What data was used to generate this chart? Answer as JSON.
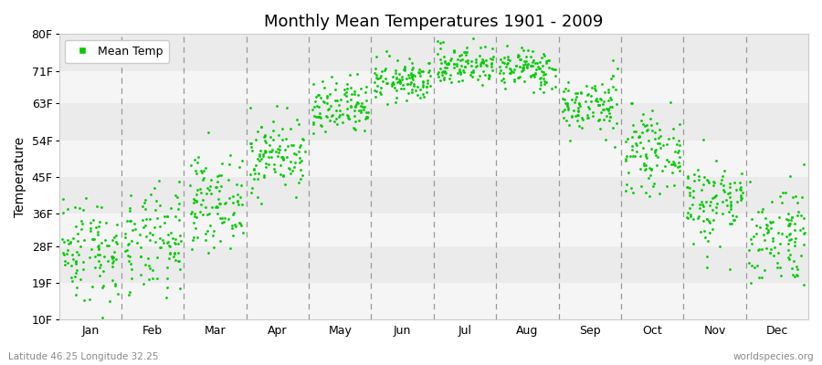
{
  "title": "Monthly Mean Temperatures 1901 - 2009",
  "ylabel": "Temperature",
  "xlabel_bottom_left": "Latitude 46.25 Longitude 32.25",
  "xlabel_bottom_right": "worldspecies.org",
  "legend_label": "Mean Temp",
  "dot_color": "#00CC00",
  "dot_size": 4,
  "months": [
    "Jan",
    "Feb",
    "Mar",
    "Apr",
    "May",
    "Jun",
    "Jul",
    "Aug",
    "Sep",
    "Oct",
    "Nov",
    "Dec"
  ],
  "yticks": [
    10,
    19,
    28,
    36,
    45,
    54,
    63,
    71,
    80
  ],
  "ytick_labels": [
    "10F",
    "19F",
    "28F",
    "36F",
    "45F",
    "54F",
    "63F",
    "71F",
    "80F"
  ],
  "ylim": [
    10,
    80
  ],
  "background_color": "#ffffff",
  "band_colors_light": "#f5f5f5",
  "band_colors_dark": "#ebebeb",
  "num_years": 109,
  "monthly_mean_temps_F": {
    "Jan": 27.5,
    "Feb": 28.5,
    "Mar": 39.0,
    "Apr": 50.5,
    "May": 61.5,
    "Jun": 68.5,
    "Jul": 72.5,
    "Aug": 71.5,
    "Sep": 62.5,
    "Oct": 51.0,
    "Nov": 39.0,
    "Dec": 31.0
  },
  "monthly_std_temps_F": {
    "Jan": 6.5,
    "Feb": 6.5,
    "Mar": 5.5,
    "Apr": 4.5,
    "May": 3.5,
    "Jun": 2.5,
    "Jul": 2.5,
    "Aug": 2.5,
    "Sep": 3.5,
    "Oct": 4.5,
    "Nov": 5.5,
    "Dec": 6.5
  },
  "xtick_positions": [
    0.5,
    1.5,
    2.5,
    3.5,
    4.5,
    5.5,
    6.5,
    7.5,
    8.5,
    9.5,
    10.5,
    11.5
  ],
  "vline_positions": [
    1,
    2,
    3,
    4,
    5,
    6,
    7,
    8,
    9,
    10,
    11
  ],
  "figsize": [
    9.0,
    4.0
  ],
  "dpi": 100
}
